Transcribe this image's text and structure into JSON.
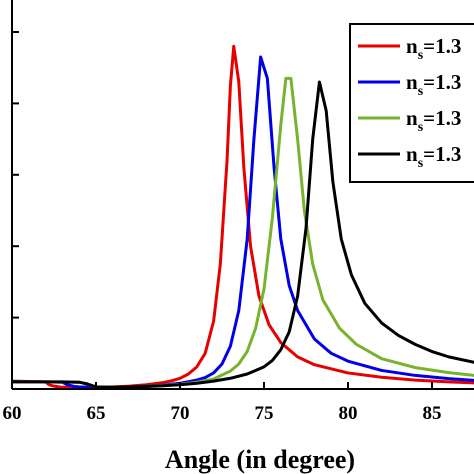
{
  "chart_data": {
    "type": "line",
    "title": "",
    "xlabel": "Angle (in degree)",
    "ylabel": "",
    "xlim": [
      60,
      87.5
    ],
    "ylim": [
      0,
      1.0
    ],
    "x_ticks": [
      60,
      65,
      70,
      75,
      80,
      85
    ],
    "x_tick_labels": [
      "60",
      "65",
      "70",
      "75",
      "80",
      "85"
    ],
    "y_ticks": [
      0,
      0.2,
      0.4,
      0.6,
      0.8,
      1.0
    ],
    "grid": false,
    "legend_position": "top-right",
    "series": [
      {
        "label_main": "n",
        "label_sub": "s",
        "label_rest": "=1.3",
        "color": "#e60000",
        "x": [
          60,
          61,
          62,
          62.2,
          62.5,
          62.8,
          63,
          64,
          65,
          66,
          67,
          68,
          69,
          69.5,
          70,
          70.5,
          71,
          71.5,
          72,
          72.4,
          72.8,
          73.0,
          73.2,
          73.5,
          73.8,
          74.2,
          74.7,
          75.3,
          76,
          77,
          78,
          80,
          82,
          84,
          86,
          87.5
        ],
        "y": [
          0.022,
          0.021,
          0.02,
          0.012,
          0.008,
          0.006,
          0.005,
          0.005,
          0.005,
          0.006,
          0.008,
          0.012,
          0.018,
          0.023,
          0.03,
          0.042,
          0.062,
          0.1,
          0.19,
          0.35,
          0.64,
          0.85,
          0.96,
          0.86,
          0.62,
          0.4,
          0.26,
          0.18,
          0.13,
          0.09,
          0.068,
          0.045,
          0.033,
          0.025,
          0.02,
          0.017
        ]
      },
      {
        "label_main": "n",
        "label_sub": "s",
        "label_rest": "=1.3",
        "color": "#0000e6",
        "x": [
          60,
          62,
          63,
          63.3,
          63.7,
          64,
          65,
          66,
          67,
          68,
          69,
          70,
          71,
          71.5,
          72,
          72.5,
          73,
          73.5,
          74,
          74.4,
          74.8,
          75.2,
          75.6,
          76.0,
          76.5,
          77,
          78,
          79,
          80,
          82,
          84,
          86,
          87.5
        ],
        "y": [
          0.02,
          0.02,
          0.019,
          0.012,
          0.007,
          0.006,
          0.005,
          0.005,
          0.006,
          0.008,
          0.011,
          0.016,
          0.025,
          0.032,
          0.045,
          0.07,
          0.12,
          0.22,
          0.42,
          0.7,
          0.93,
          0.87,
          0.62,
          0.42,
          0.29,
          0.22,
          0.14,
          0.1,
          0.078,
          0.052,
          0.038,
          0.029,
          0.024
        ]
      },
      {
        "label_main": "n",
        "label_sub": "s",
        "label_rest": "=1.3",
        "color": "#77b32d",
        "x": [
          60,
          63,
          64,
          64.5,
          64.8,
          65,
          66,
          67,
          68,
          69,
          70,
          71,
          72,
          73,
          73.5,
          74,
          74.5,
          75,
          75.5,
          76,
          76.3,
          76.6,
          77.0,
          77.4,
          77.9,
          78.5,
          79.5,
          80.5,
          82,
          84,
          86,
          87.5
        ],
        "y": [
          0.02,
          0.02,
          0.019,
          0.014,
          0.009,
          0.006,
          0.005,
          0.006,
          0.007,
          0.01,
          0.013,
          0.019,
          0.028,
          0.05,
          0.07,
          0.105,
          0.17,
          0.28,
          0.48,
          0.74,
          0.87,
          0.87,
          0.7,
          0.5,
          0.35,
          0.25,
          0.17,
          0.125,
          0.085,
          0.06,
          0.046,
          0.038
        ]
      },
      {
        "label_main": "n",
        "label_sub": "s",
        "label_rest": "=1.3",
        "color": "#000000",
        "x": [
          60,
          63,
          64,
          64.5,
          64.8,
          65,
          66,
          67,
          68,
          69,
          70,
          71,
          72,
          73,
          74,
          75,
          75.5,
          76,
          76.5,
          77,
          77.5,
          77.9,
          78.3,
          78.7,
          79.1,
          79.6,
          80.2,
          81,
          82,
          83,
          84,
          85,
          86,
          87.5
        ],
        "y": [
          0.02,
          0.02,
          0.019,
          0.014,
          0.009,
          0.006,
          0.005,
          0.006,
          0.007,
          0.009,
          0.012,
          0.016,
          0.022,
          0.03,
          0.042,
          0.062,
          0.08,
          0.11,
          0.16,
          0.26,
          0.45,
          0.7,
          0.86,
          0.78,
          0.58,
          0.42,
          0.32,
          0.24,
          0.185,
          0.15,
          0.125,
          0.105,
          0.09,
          0.075
        ]
      }
    ]
  }
}
